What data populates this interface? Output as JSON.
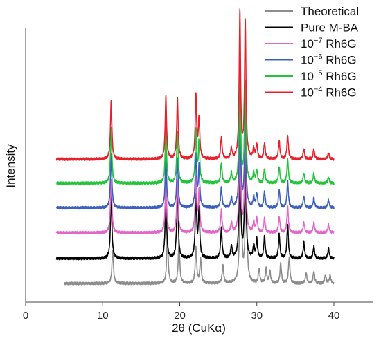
{
  "chart_data": {
    "type": "line",
    "title": "",
    "xlabel": "2θ (CuKα)",
    "ylabel": "Intensity",
    "xlim": [
      0,
      40
    ],
    "x_ticks": [
      0,
      10,
      20,
      30,
      40
    ],
    "y_ticks_shown": false,
    "grid": false,
    "legend_position": "top-right",
    "series": [
      {
        "name": "Theoretical",
        "label_html": "Theoretical",
        "color": "#8c8c8c",
        "x_range": [
          5,
          40
        ],
        "baseline": 0.0,
        "peaks": [
          [
            11.3,
            0.17
          ],
          [
            18.4,
            0.24
          ],
          [
            19.9,
            0.22
          ],
          [
            22.1,
            0.18
          ],
          [
            22.7,
            0.12
          ],
          [
            25.6,
            0.09
          ],
          [
            27.9,
            0.82
          ],
          [
            28.6,
            0.64
          ],
          [
            30.3,
            0.07
          ],
          [
            31.2,
            0.07
          ],
          [
            31.7,
            0.06
          ],
          [
            33.1,
            0.1
          ],
          [
            34.2,
            0.13
          ],
          [
            36.4,
            0.05
          ],
          [
            37.4,
            0.06
          ],
          [
            38.9,
            0.04
          ],
          [
            39.5,
            0.04
          ]
        ]
      },
      {
        "name": "Pure M-BA",
        "label_html": "Pure M-BA",
        "color": "#000000",
        "x_range": [
          4,
          40
        ],
        "baseline": 0.125,
        "peaks": [
          [
            11.1,
            0.32
          ],
          [
            18.2,
            0.33
          ],
          [
            19.7,
            0.37
          ],
          [
            22.1,
            0.31
          ],
          [
            22.5,
            0.24
          ],
          [
            25.4,
            0.15
          ],
          [
            26.7,
            0.06
          ],
          [
            27.8,
            0.6
          ],
          [
            28.5,
            0.55
          ],
          [
            29.6,
            0.06
          ],
          [
            30.0,
            0.09
          ],
          [
            31.0,
            0.11
          ],
          [
            32.9,
            0.12
          ],
          [
            34.0,
            0.17
          ],
          [
            36.1,
            0.08
          ],
          [
            37.4,
            0.06
          ],
          [
            39.3,
            0.05
          ]
        ]
      },
      {
        "name": "10⁻⁷ Rh6G",
        "label_prefix": "10",
        "label_sup": "−7",
        "label_suffix": " Rh6G",
        "color": "#e066c8",
        "x_range": [
          4,
          40
        ],
        "baseline": 0.253,
        "peaks": [
          [
            11.1,
            0.27
          ],
          [
            18.2,
            0.27
          ],
          [
            19.7,
            0.26
          ],
          [
            22.1,
            0.27
          ],
          [
            22.5,
            0.2
          ],
          [
            25.4,
            0.11
          ],
          [
            26.7,
            0.05
          ],
          [
            27.8,
            0.55
          ],
          [
            28.5,
            0.5
          ],
          [
            29.6,
            0.05
          ],
          [
            30.0,
            0.07
          ],
          [
            31.0,
            0.07
          ],
          [
            32.9,
            0.08
          ],
          [
            34.0,
            0.13
          ],
          [
            36.1,
            0.05
          ],
          [
            37.4,
            0.05
          ],
          [
            39.3,
            0.04
          ]
        ]
      },
      {
        "name": "10⁻⁶ Rh6G",
        "label_prefix": "10",
        "label_sup": "−6",
        "label_suffix": " Rh6G",
        "color": "#3a5fbf",
        "x_range": [
          4,
          40
        ],
        "baseline": 0.377,
        "peaks": [
          [
            11.1,
            0.27
          ],
          [
            18.2,
            0.26
          ],
          [
            19.7,
            0.25
          ],
          [
            22.1,
            0.26
          ],
          [
            22.5,
            0.2
          ],
          [
            25.4,
            0.1
          ],
          [
            26.7,
            0.05
          ],
          [
            27.8,
            0.55
          ],
          [
            28.5,
            0.5
          ],
          [
            29.6,
            0.05
          ],
          [
            30.0,
            0.07
          ],
          [
            31.0,
            0.08
          ],
          [
            32.9,
            0.09
          ],
          [
            34.0,
            0.13
          ],
          [
            36.1,
            0.06
          ],
          [
            37.4,
            0.05
          ],
          [
            39.3,
            0.04
          ]
        ]
      },
      {
        "name": "10⁻⁵ Rh6G",
        "label_prefix": "10",
        "label_sup": "−5",
        "label_suffix": " Rh6G",
        "color": "#22c43c",
        "x_range": [
          4,
          40
        ],
        "baseline": 0.5,
        "peaks": [
          [
            11.1,
            0.27
          ],
          [
            18.2,
            0.27
          ],
          [
            19.7,
            0.26
          ],
          [
            22.1,
            0.26
          ],
          [
            22.5,
            0.2
          ],
          [
            25.4,
            0.1
          ],
          [
            26.7,
            0.05
          ],
          [
            27.8,
            0.55
          ],
          [
            28.5,
            0.5
          ],
          [
            29.6,
            0.05
          ],
          [
            30.0,
            0.06
          ],
          [
            31.0,
            0.07
          ],
          [
            32.9,
            0.08
          ],
          [
            34.0,
            0.12
          ],
          [
            36.1,
            0.05
          ],
          [
            37.4,
            0.05
          ],
          [
            39.3,
            0.03
          ]
        ]
      },
      {
        "name": "10⁻⁴ Rh6G",
        "label_prefix": "10",
        "label_sup": "−4",
        "label_suffix": " Rh6G",
        "color": "#e8202a",
        "x_range": [
          4,
          40
        ],
        "baseline": 0.62,
        "peaks": [
          [
            11.1,
            0.29
          ],
          [
            18.2,
            0.31
          ],
          [
            19.7,
            0.3
          ],
          [
            22.1,
            0.31
          ],
          [
            22.5,
            0.2
          ],
          [
            25.4,
            0.11
          ],
          [
            26.7,
            0.05
          ],
          [
            27.8,
            0.73
          ],
          [
            28.5,
            0.68
          ],
          [
            29.6,
            0.05
          ],
          [
            30.0,
            0.07
          ],
          [
            31.0,
            0.08
          ],
          [
            32.9,
            0.09
          ],
          [
            34.0,
            0.12
          ],
          [
            36.1,
            0.05
          ],
          [
            37.4,
            0.05
          ],
          [
            39.3,
            0.03
          ]
        ]
      }
    ]
  }
}
